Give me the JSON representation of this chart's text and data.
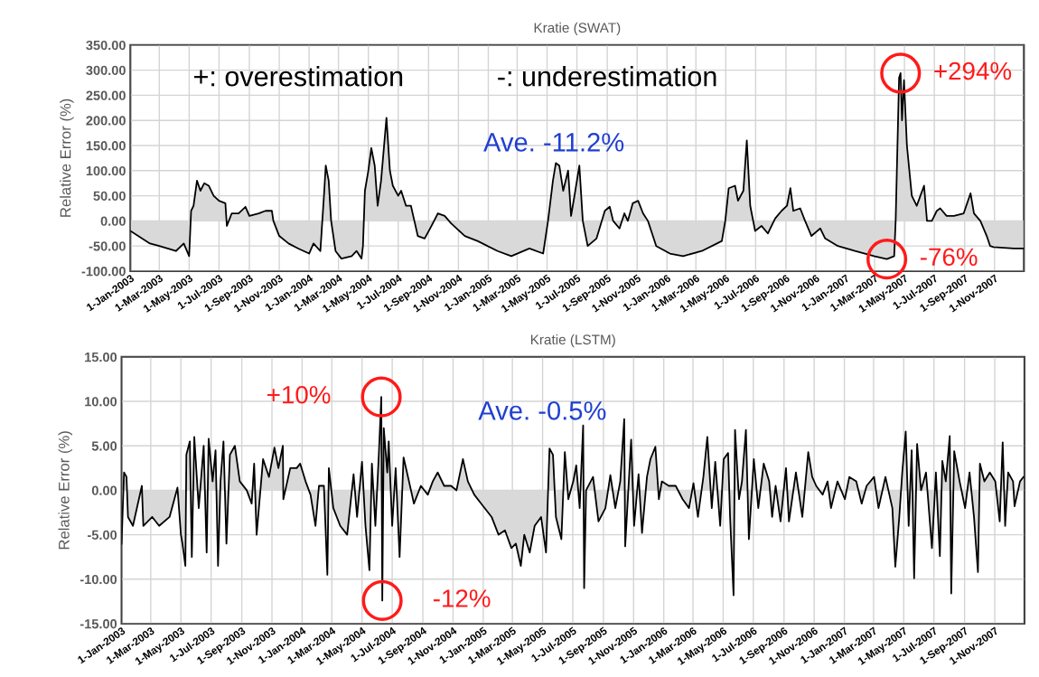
{
  "chart_data": [
    {
      "type": "area",
      "title": "Kratie (SWAT)",
      "ylabel": "Relative Error (%)",
      "grid": true,
      "x": [
        "2003-01-01",
        "2003-02-10",
        "2003-03-01",
        "2003-04-04",
        "2003-04-20",
        "2003-05-01",
        "2003-05-05",
        "2003-05-10",
        "2003-05-17",
        "2003-05-24",
        "2003-06-01",
        "2003-06-10",
        "2003-06-20",
        "2003-07-01",
        "2003-07-14",
        "2003-07-17",
        "2003-07-27",
        "2003-08-10",
        "2003-08-24",
        "2003-09-01",
        "2003-09-20",
        "2003-10-04",
        "2003-10-17",
        "2003-10-20",
        "2003-11-01",
        "2003-11-20",
        "2003-12-10",
        "2004-01-01",
        "2004-01-10",
        "2004-01-24",
        "2004-02-01",
        "2004-02-04",
        "2004-02-10",
        "2004-02-15",
        "2004-02-24",
        "2004-03-07",
        "2004-03-28",
        "2004-04-07",
        "2004-04-17",
        "2004-04-20",
        "2004-04-24",
        "2004-05-01",
        "2004-05-07",
        "2004-05-14",
        "2004-05-20",
        "2004-05-27",
        "2004-06-07",
        "2004-06-14",
        "2004-06-20",
        "2004-07-01",
        "2004-07-07",
        "2004-07-17",
        "2004-07-27",
        "2004-08-03",
        "2004-08-10",
        "2004-08-24",
        "2004-09-07",
        "2004-09-20",
        "2004-10-04",
        "2004-10-17",
        "2004-11-14",
        "2004-12-10",
        "2005-01-20",
        "2005-02-17",
        "2005-03-26",
        "2005-04-23",
        "2005-05-03",
        "2005-05-13",
        "2005-05-19",
        "2005-05-26",
        "2005-06-03",
        "2005-06-13",
        "2005-06-19",
        "2005-06-26",
        "2005-07-06",
        "2005-07-13",
        "2005-07-23",
        "2005-08-10",
        "2005-08-27",
        "2005-09-06",
        "2005-09-13",
        "2005-09-26",
        "2005-10-06",
        "2005-10-13",
        "2005-10-23",
        "2005-11-03",
        "2005-11-13",
        "2005-11-23",
        "2005-12-10",
        "2006-01-07",
        "2006-02-03",
        "2006-03-13",
        "2006-04-23",
        "2006-04-30",
        "2006-05-07",
        "2006-05-20",
        "2006-05-26",
        "2006-06-06",
        "2006-06-13",
        "2006-06-20",
        "2006-06-30",
        "2006-07-13",
        "2006-07-26",
        "2006-08-10",
        "2006-08-23",
        "2006-09-03",
        "2006-09-10",
        "2006-09-16",
        "2006-09-30",
        "2006-10-10",
        "2006-10-23",
        "2006-11-10",
        "2006-11-20",
        "2006-12-16",
        "2007-01-20",
        "2007-02-28",
        "2007-03-26",
        "2007-04-10",
        "2007-04-13",
        "2007-04-20",
        "2007-04-23",
        "2007-04-26",
        "2007-04-30",
        "2007-05-06",
        "2007-05-16",
        "2007-05-26",
        "2007-06-10",
        "2007-06-16",
        "2007-06-26",
        "2007-07-06",
        "2007-07-13",
        "2007-07-26",
        "2007-08-10",
        "2007-08-30",
        "2007-09-13",
        "2007-09-20",
        "2007-10-03",
        "2007-10-16",
        "2007-10-23",
        "2007-10-30",
        "2007-12-10",
        "2007-12-31"
      ],
      "series": [
        {
          "color": "#d9d9d9",
          "values": [
            -20,
            -45,
            -50,
            -60,
            -45,
            -70,
            20,
            30,
            80,
            60,
            75,
            70,
            50,
            40,
            35,
            -10,
            15,
            15,
            28,
            10,
            15,
            20,
            20,
            0,
            -30,
            -45,
            -55,
            -65,
            -45,
            -60,
            60,
            110,
            80,
            0,
            -60,
            -75,
            -70,
            -60,
            -75,
            -50,
            60,
            100,
            145,
            110,
            30,
            80,
            205,
            100,
            70,
            50,
            60,
            30,
            30,
            0,
            -30,
            -35,
            -10,
            15,
            10,
            -5,
            -30,
            -40,
            -60,
            -70,
            -55,
            -65,
            0,
            80,
            115,
            110,
            60,
            100,
            10,
            50,
            110,
            0,
            -50,
            -35,
            20,
            28,
            0,
            -15,
            15,
            0,
            35,
            40,
            15,
            0,
            -50,
            -65,
            -70,
            -60,
            -40,
            0,
            65,
            70,
            40,
            60,
            160,
            30,
            -20,
            -10,
            -25,
            5,
            20,
            30,
            65,
            20,
            25,
            0,
            -30,
            -15,
            -35,
            -50,
            -60,
            -70,
            -76,
            -70,
            0,
            285,
            294,
            200,
            280,
            150,
            50,
            30,
            70,
            0,
            0,
            20,
            25,
            10,
            10,
            15,
            55,
            15,
            0,
            -30,
            -50,
            -52,
            -55,
            -55
          ]
        }
      ],
      "xlim": [
        "2003-01-01",
        "2007-12-31"
      ],
      "xticks": [
        {
          "value": "2003-01-01",
          "label": "1-Jan-2003"
        },
        {
          "value": "2003-03-01",
          "label": "1-Mar-2003"
        },
        {
          "value": "2003-05-01",
          "label": "1-May-2003"
        },
        {
          "value": "2003-07-01",
          "label": "1-Jul-2003"
        },
        {
          "value": "2003-09-01",
          "label": "1-Sep-2003"
        },
        {
          "value": "2003-11-01",
          "label": "1-Nov-2003"
        },
        {
          "value": "2004-01-01",
          "label": "1-Jan-2004"
        },
        {
          "value": "2004-03-01",
          "label": "1-Mar-2004"
        },
        {
          "value": "2004-05-01",
          "label": "1-May-2004"
        },
        {
          "value": "2004-07-01",
          "label": "1-Jul-2004"
        },
        {
          "value": "2004-09-01",
          "label": "1-Sep-2004"
        },
        {
          "value": "2004-11-01",
          "label": "1-Nov-2004"
        },
        {
          "value": "2005-01-01",
          "label": "1-Jan-2005"
        },
        {
          "value": "2005-03-01",
          "label": "1-Mar-2005"
        },
        {
          "value": "2005-05-01",
          "label": "1-May-2005"
        },
        {
          "value": "2005-07-01",
          "label": "1-Jul-2005"
        },
        {
          "value": "2005-09-01",
          "label": "1-Sep-2005"
        },
        {
          "value": "2005-11-01",
          "label": "1-Nov-2005"
        },
        {
          "value": "2006-01-01",
          "label": "1-Jan-2006"
        },
        {
          "value": "2006-03-01",
          "label": "1-Mar-2006"
        },
        {
          "value": "2006-05-01",
          "label": "1-May-2006"
        },
        {
          "value": "2006-07-01",
          "label": "1-Jul-2006"
        },
        {
          "value": "2006-09-01",
          "label": "1-Sep-2006"
        },
        {
          "value": "2006-11-01",
          "label": "1-Nov-2006"
        },
        {
          "value": "2007-01-01",
          "label": "1-Jan-2007"
        },
        {
          "value": "2007-03-01",
          "label": "1-Mar-2007"
        },
        {
          "value": "2007-05-01",
          "label": "1-May-2007"
        },
        {
          "value": "2007-07-01",
          "label": "1-Jul-2007"
        },
        {
          "value": "2007-09-01",
          "label": "1-Sep-2007"
        },
        {
          "value": "2007-11-01",
          "label": "1-Nov-2007"
        }
      ],
      "ylim": [
        -100,
        350
      ],
      "yticks": [
        {
          "value": -100,
          "label": "-100.00"
        },
        {
          "value": -50,
          "label": "-50.00"
        },
        {
          "value": 0,
          "label": "0.00"
        },
        {
          "value": 50,
          "label": "50.00"
        },
        {
          "value": 100,
          "label": "100.00"
        },
        {
          "value": 150,
          "label": "150.00"
        },
        {
          "value": 200,
          "label": "200.00"
        },
        {
          "value": 250,
          "label": "250.00"
        },
        {
          "value": 300,
          "label": "300.00"
        },
        {
          "value": 350,
          "label": "350.00"
        }
      ],
      "annotations": [
        "+: overestimation",
        "-: underestimation",
        "Ave. -11.2%",
        {
          "text": "+294%",
          "x": "2007-04-23",
          "y": 294
        },
        {
          "text": "-76%",
          "x": "2007-03-26",
          "y": -76
        }
      ]
    },
    {
      "type": "area",
      "title": "Kratie (LSTM)",
      "ylabel": "Relative Error (%)",
      "grid": true,
      "x": [
        "2003-01-01",
        "2003-01-06",
        "2003-01-11",
        "2003-01-14",
        "2003-01-24",
        "2003-02-11",
        "2003-02-14",
        "2003-03-04",
        "2003-03-18",
        "2003-04-08",
        "2003-04-24",
        "2003-05-01",
        "2003-05-04",
        "2003-05-10",
        "2003-05-12",
        "2003-05-19",
        "2003-05-23",
        "2003-05-28",
        "2003-06-06",
        "2003-06-16",
        "2003-06-22",
        "2003-06-26",
        "2003-07-04",
        "2003-07-10",
        "2003-07-15",
        "2003-07-20",
        "2003-07-26",
        "2003-08-01",
        "2003-08-08",
        "2003-08-18",
        "2003-08-28",
        "2003-09-11",
        "2003-09-21",
        "2003-09-26",
        "2003-10-01",
        "2003-10-14",
        "2003-10-26",
        "2003-11-06",
        "2003-11-14",
        "2003-11-23",
        "2003-11-24",
        "2003-12-08",
        "2003-12-21",
        "2003-12-28",
        "2004-01-08",
        "2004-01-18",
        "2004-01-28",
        "2004-02-04",
        "2004-02-14",
        "2004-02-21",
        "2004-02-24",
        "2004-03-04",
        "2004-03-18",
        "2004-04-01",
        "2004-04-14",
        "2004-04-21",
        "2004-05-01",
        "2004-05-08",
        "2004-05-16",
        "2004-05-21",
        "2004-05-28",
        "2004-06-04",
        "2004-06-09",
        "2004-06-11",
        "2004-06-14",
        "2004-06-21",
        "2004-06-24",
        "2004-07-01",
        "2004-07-08",
        "2004-07-16",
        "2004-07-24",
        "2004-08-04",
        "2004-08-14",
        "2004-08-28",
        "2004-09-11",
        "2004-09-21",
        "2004-10-01",
        "2004-10-14",
        "2004-10-28",
        "2004-11-08",
        "2004-11-21",
        "2004-12-01",
        "2004-12-14",
        "2004-12-28",
        "2005-01-18",
        "2005-02-01",
        "2005-02-14",
        "2005-02-27",
        "2005-03-08",
        "2005-03-18",
        "2005-03-25",
        "2005-04-05",
        "2005-04-15",
        "2005-04-28",
        "2005-05-08",
        "2005-05-15",
        "2005-05-22",
        "2005-05-28",
        "2005-06-08",
        "2005-06-15",
        "2005-06-22",
        "2005-07-02",
        "2005-07-08",
        "2005-07-15",
        "2005-07-22",
        "2005-07-24",
        "2005-07-28",
        "2005-08-11",
        "2005-08-22",
        "2005-09-05",
        "2005-09-15",
        "2005-09-25",
        "2005-10-05",
        "2005-10-13",
        "2005-10-15",
        "2005-10-27",
        "2005-11-02",
        "2005-11-11",
        "2005-11-18",
        "2005-11-28",
        "2005-12-05",
        "2005-12-15",
        "2005-12-22",
        "2005-12-28",
        "2006-01-11",
        "2006-01-25",
        "2006-02-08",
        "2006-02-21",
        "2006-03-02",
        "2006-03-11",
        "2006-03-22",
        "2006-03-30",
        "2006-04-08",
        "2006-04-15",
        "2006-04-25",
        "2006-05-02",
        "2006-05-11",
        "2006-05-15",
        "2006-05-22",
        "2006-05-25",
        "2006-06-02",
        "2006-06-08",
        "2006-06-16",
        "2006-06-22",
        "2006-07-02",
        "2006-07-11",
        "2006-07-22",
        "2006-08-02",
        "2006-08-08",
        "2006-08-15",
        "2006-08-25",
        "2006-09-05",
        "2006-09-11",
        "2006-09-25",
        "2006-10-08",
        "2006-10-20",
        "2006-10-28",
        "2006-11-05",
        "2006-11-18",
        "2006-11-28",
        "2006-12-05",
        "2006-12-18",
        "2007-01-02",
        "2007-01-11",
        "2007-01-25",
        "2007-02-05",
        "2007-02-15",
        "2007-03-02",
        "2007-03-11",
        "2007-03-25",
        "2007-04-08",
        "2007-04-14",
        "2007-04-22",
        "2007-04-28",
        "2007-05-05",
        "2007-05-11",
        "2007-05-17",
        "2007-05-22",
        "2007-05-28",
        "2007-06-05",
        "2007-06-15",
        "2007-06-27",
        "2007-07-05",
        "2007-07-13",
        "2007-07-18",
        "2007-07-25",
        "2007-08-02",
        "2007-08-05",
        "2007-08-11",
        "2007-08-22",
        "2007-09-02",
        "2007-09-11",
        "2007-09-20",
        "2007-09-28",
        "2007-10-02",
        "2007-10-11",
        "2007-10-22",
        "2007-11-02",
        "2007-11-11",
        "2007-11-17",
        "2007-11-22",
        "2007-11-28",
        "2007-12-08",
        "2007-12-11",
        "2007-12-22",
        "2007-12-29"
      ],
      "series": [
        {
          "color": "#d9d9d9",
          "values": [
            -6,
            2,
            1.5,
            -3,
            -4,
            0.5,
            -4,
            -3,
            -4,
            -3,
            0.3,
            -5,
            -6,
            -8.5,
            4,
            5.5,
            -7.5,
            6,
            -2,
            5,
            -7,
            5.8,
            1,
            4.5,
            -8.5,
            1,
            5.5,
            -6,
            4,
            5,
            1,
            0,
            -1.5,
            3,
            -5,
            3.5,
            1.5,
            4.8,
            2.5,
            5,
            -1,
            2.5,
            2.5,
            3,
            1,
            -0.5,
            -4,
            0.5,
            0.5,
            -9.5,
            2.5,
            -2,
            -4,
            -5,
            1.8,
            -3,
            3.2,
            -4,
            -9,
            3,
            -4,
            4,
            10.5,
            -12.4,
            7,
            2,
            5.5,
            -4,
            2.5,
            -7.5,
            3.7,
            1,
            -1.5,
            0.5,
            -0.5,
            1,
            2,
            0.5,
            0.5,
            0,
            3.5,
            1,
            -0.5,
            -1.5,
            -3,
            -5,
            -4.5,
            -6.5,
            -6,
            -8.5,
            -5,
            -7,
            -4,
            -3,
            -7,
            4.7,
            4,
            -3,
            -5.5,
            4.3,
            -1,
            1,
            2.8,
            -2,
            7.3,
            -11,
            0,
            1.5,
            -3.5,
            -2,
            1.7,
            -2,
            1,
            8,
            -6.3,
            5.7,
            -4,
            1.8,
            -4.8,
            1.5,
            3.5,
            4.9,
            -1,
            1,
            0.5,
            0.5,
            -1,
            -2,
            0.8,
            -3,
            1.5,
            6,
            -2,
            3.2,
            -4,
            3.5,
            4.2,
            -3,
            -11.8,
            6.8,
            -1,
            1,
            6.8,
            -5.5,
            3.5,
            -2,
            3,
            1,
            -3,
            0.5,
            -3.5,
            2.5,
            -3.5,
            2,
            -3,
            4.3,
            1.5,
            0.5,
            -0.5,
            1,
            -2,
            1,
            -1,
            1.5,
            1,
            -1.5,
            0.5,
            1.5,
            -2,
            1.5,
            -2,
            -8.6,
            -3,
            2,
            6.6,
            -4,
            4.5,
            -9.9,
            5.2,
            0,
            2,
            -6.5,
            2,
            -7.4,
            3.3,
            1,
            6.1,
            -11.6,
            4.4,
            1,
            -2,
            2,
            -3,
            -9.2,
            3,
            1,
            2,
            1,
            -3.5,
            5.4,
            -4,
            2,
            1,
            -1.8,
            1,
            1.5
          ]
        }
      ],
      "xlim": [
        "2003-01-01",
        "2007-12-31"
      ],
      "xticks": [
        {
          "value": "2003-01-01",
          "label": "1-Jan-2003"
        },
        {
          "value": "2003-03-01",
          "label": "1-Mar-2003"
        },
        {
          "value": "2003-05-01",
          "label": "1-May-2003"
        },
        {
          "value": "2003-07-01",
          "label": "1-Jul-2003"
        },
        {
          "value": "2003-09-01",
          "label": "1-Sep-2003"
        },
        {
          "value": "2003-11-01",
          "label": "1-Nov-2003"
        },
        {
          "value": "2004-01-01",
          "label": "1-Jan-2004"
        },
        {
          "value": "2004-03-01",
          "label": "1-Mar-2004"
        },
        {
          "value": "2004-05-01",
          "label": "1-May-2004"
        },
        {
          "value": "2004-07-01",
          "label": "1-Jul-2004"
        },
        {
          "value": "2004-09-01",
          "label": "1-Sep-2004"
        },
        {
          "value": "2004-11-01",
          "label": "1-Nov-2004"
        },
        {
          "value": "2005-01-01",
          "label": "1-Jan-2005"
        },
        {
          "value": "2005-03-01",
          "label": "1-Mar-2005"
        },
        {
          "value": "2005-05-01",
          "label": "1-May-2005"
        },
        {
          "value": "2005-07-01",
          "label": "1-Jul-2005"
        },
        {
          "value": "2005-09-01",
          "label": "1-Sep-2005"
        },
        {
          "value": "2005-11-01",
          "label": "1-Nov-2005"
        },
        {
          "value": "2006-01-01",
          "label": "1-Jan-2006"
        },
        {
          "value": "2006-03-01",
          "label": "1-Mar-2006"
        },
        {
          "value": "2006-05-01",
          "label": "1-May-2006"
        },
        {
          "value": "2006-07-01",
          "label": "1-Jul-2006"
        },
        {
          "value": "2006-09-01",
          "label": "1-Sep-2006"
        },
        {
          "value": "2006-11-01",
          "label": "1-Nov-2006"
        },
        {
          "value": "2007-01-01",
          "label": "1-Jan-2007"
        },
        {
          "value": "2007-03-01",
          "label": "1-Mar-2007"
        },
        {
          "value": "2007-05-01",
          "label": "1-May-2007"
        },
        {
          "value": "2007-07-01",
          "label": "1-Jul-2007"
        },
        {
          "value": "2007-09-01",
          "label": "1-Sep-2007"
        },
        {
          "value": "2007-11-01",
          "label": "1-Nov-2007"
        }
      ],
      "ylim": [
        -15,
        15
      ],
      "yticks": [
        {
          "value": -15,
          "label": "-15.00"
        },
        {
          "value": -10,
          "label": "-10.00"
        },
        {
          "value": -5,
          "label": "-5.00"
        },
        {
          "value": 0,
          "label": "0.00"
        },
        {
          "value": 5,
          "label": "5.00"
        },
        {
          "value": 10,
          "label": "10.00"
        },
        {
          "value": 15,
          "label": "15.00"
        }
      ],
      "annotations": [
        "Ave. -0.5%",
        {
          "text": "+10%",
          "x": "2004-06-09",
          "y": 10.5
        },
        {
          "text": "-12%",
          "x": "2004-06-11",
          "y": -12.4
        }
      ]
    }
  ]
}
